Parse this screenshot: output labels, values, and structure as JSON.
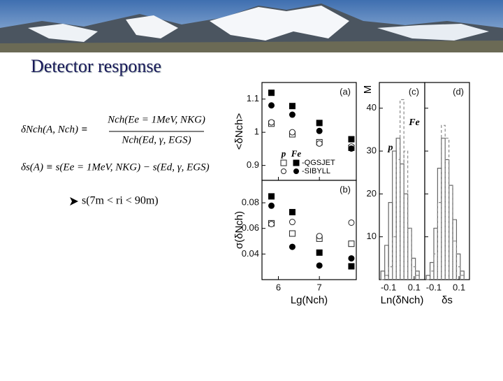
{
  "header": {
    "title": "Detector response"
  },
  "formulas": {
    "f1_lhs": "δNch(A, Nch) ≡",
    "f1_num": "Nch(Ee = 1MeV, NKG)",
    "f1_den": "Nch(Ed, γ, EGS)",
    "f2": "δs(A) ≡ s(Ee = 1MeV, NKG) − s(Ed, γ, EGS)"
  },
  "bullet": "s(7m < ri < 90m)",
  "chart_data": [
    {
      "type": "scatter",
      "label": "(a)",
      "ylabel": "<δNch>",
      "x": [
        5.83,
        6.34,
        7.0,
        7.78
      ],
      "xlim": [
        5.6,
        7.9
      ],
      "ylim": [
        0.855,
        1.15
      ],
      "yticks": [
        0.9,
        1,
        1.1
      ],
      "legend": {
        "columns": [
          "p",
          "Fe"
        ],
        "rows": [
          "-QGSJET",
          "-SIBYLL"
        ]
      },
      "series": [
        {
          "marker": "square",
          "filled": false,
          "color": "#222",
          "values": [
            1.026,
            0.994,
            0.97,
            0.953
          ]
        },
        {
          "marker": "square",
          "filled": true,
          "color": "#000",
          "values": [
            1.119,
            1.079,
            1.028,
            0.979
          ]
        },
        {
          "marker": "circle",
          "filled": false,
          "color": "#222",
          "values": [
            1.03,
            1.0,
            0.966,
            0.957
          ]
        },
        {
          "marker": "circle",
          "filled": true,
          "color": "#000",
          "values": [
            1.081,
            1.053,
            1.004,
            0.951
          ]
        }
      ]
    },
    {
      "type": "scatter",
      "label": "(b)",
      "ylabel": "σ(δNch)",
      "xlabel": "Lg(Nch)",
      "x": [
        5.83,
        6.34,
        7.0,
        7.78
      ],
      "xlim": [
        5.6,
        7.9
      ],
      "xticks": [
        6,
        7
      ],
      "ylim": [
        0.02,
        0.0975
      ],
      "yticks": [
        0.04,
        0.06,
        0.08
      ],
      "series": [
        {
          "marker": "square",
          "filled": false,
          "color": "#222",
          "values": [
            0.064,
            0.056,
            0.052,
            0.048
          ]
        },
        {
          "marker": "square",
          "filled": true,
          "color": "#000",
          "values": [
            0.085,
            0.0727,
            0.0411,
            0.0304
          ]
        },
        {
          "marker": "circle",
          "filled": false,
          "color": "#222",
          "values": [
            0.0634,
            0.065,
            0.054,
            0.0645
          ]
        },
        {
          "marker": "circle",
          "filled": true,
          "color": "#000",
          "values": [
            0.0777,
            0.0456,
            0.031,
            0.0366
          ]
        }
      ]
    },
    {
      "type": "histogram",
      "label": "(c)",
      "ylabel": "M",
      "xlabel": "Ln(δNch)",
      "bins": [
        -0.16,
        -0.13,
        -0.1,
        -0.07,
        -0.04,
        -0.01,
        0.02,
        0.05,
        0.08,
        0.11,
        0.14
      ],
      "xlim": [
        -0.172,
        0.183
      ],
      "xticks": [
        -0.1,
        0.1
      ],
      "ylim": [
        0,
        46
      ],
      "yticks": [
        10,
        20,
        30,
        40
      ],
      "annotations": [
        "p",
        "Fe"
      ],
      "series": [
        {
          "style": "solid",
          "color": "#666",
          "values": [
            2,
            8,
            18,
            30,
            33,
            27,
            20,
            12,
            5,
            2
          ]
        },
        {
          "style": "dashed",
          "color": "#888",
          "values": [
            0,
            1,
            3,
            10,
            28,
            42,
            30,
            12,
            3,
            1
          ]
        }
      ]
    },
    {
      "type": "histogram",
      "label": "(d)",
      "xlabel": "δs",
      "bins": [
        -0.16,
        -0.13,
        -0.1,
        -0.07,
        -0.04,
        -0.01,
        0.02,
        0.05,
        0.08,
        0.11,
        0.14
      ],
      "xlim": [
        -0.172,
        0.183
      ],
      "xticks": [
        -0.1,
        0.1
      ],
      "ylim": [
        0,
        46
      ],
      "series": [
        {
          "style": "solid",
          "color": "#666",
          "values": [
            1,
            4,
            12,
            26,
            33,
            28,
            22,
            14,
            6,
            2
          ]
        },
        {
          "style": "dashed",
          "color": "#888",
          "values": [
            0,
            2,
            6,
            18,
            36,
            33,
            22,
            9,
            3,
            1
          ]
        }
      ]
    }
  ]
}
